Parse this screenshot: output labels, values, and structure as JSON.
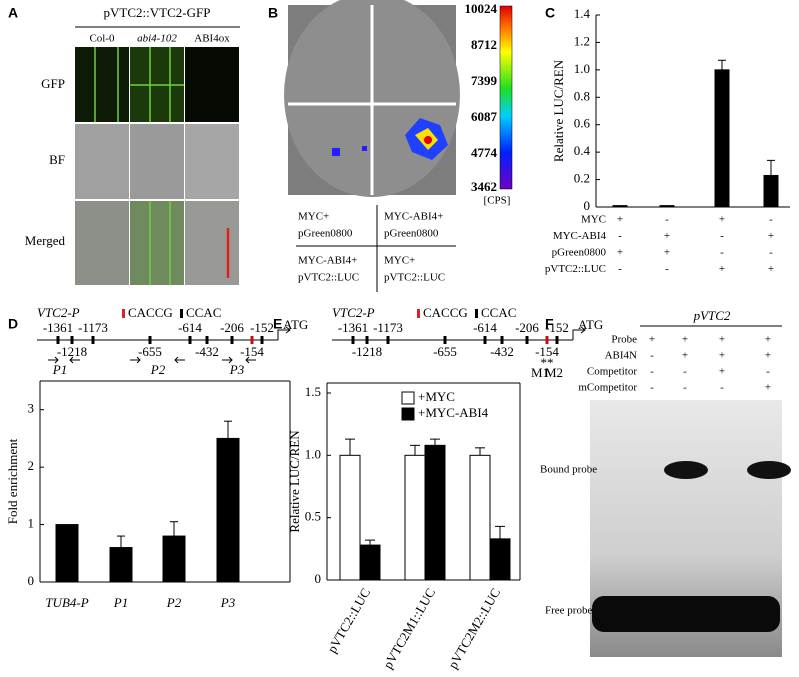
{
  "chart_data": [
    {
      "type": "bar",
      "letter": "C",
      "y_label": "Relative LUC/REN",
      "categories": [
        null,
        null,
        null,
        null
      ],
      "values": [
        0.01,
        0.01,
        1.0,
        0.23
      ],
      "errors": [
        0,
        0,
        0.07,
        0.11
      ],
      "color": "#000000",
      "ylim": [
        0,
        1.4
      ],
      "yticks": [
        0,
        0.2,
        0.4,
        0.6,
        0.8,
        {
          "value": 1,
          "label": "1.0"
        },
        1.2,
        1.4
      ],
      "condition_rows": [
        {
          "name": "MYC",
          "signs": [
            "+",
            "-",
            "+",
            "-"
          ]
        },
        {
          "name": "MYC-ABI4",
          "signs": [
            "-",
            "+",
            "-",
            "+"
          ]
        },
        {
          "name": "pGreen0800",
          "signs": [
            "+",
            "+",
            "-",
            "-"
          ]
        },
        {
          "name": "pVTC2::LUC",
          "signs": [
            "-",
            "-",
            "+",
            "+"
          ]
        }
      ]
    },
    {
      "type": "bar",
      "letter": "D",
      "y_label": "Fold enrichment",
      "categories": [
        "TUB4-P",
        "P1",
        "P2",
        "P3"
      ],
      "values": [
        1.0,
        0.6,
        0.8,
        2.5
      ],
      "errors": [
        0,
        0.2,
        0.25,
        0.3
      ],
      "color": "#000000",
      "ylim": [
        0,
        3.5
      ],
      "yticks": [
        0,
        1,
        2,
        3
      ]
    },
    {
      "type": "grouped_bar",
      "letter": "E",
      "y_label": "Relative LUC/REN",
      "categories": [
        "pVTC2::LUC",
        "pVTC2M1::LUC",
        "pVTC2M2::LUC"
      ],
      "series": [
        {
          "name": "+MYC",
          "color": "#ffffff",
          "values": [
            1.0,
            1.0,
            1.0
          ],
          "errors": [
            0.13,
            0.08,
            0.06
          ]
        },
        {
          "name": "+MYC-ABI4",
          "color": "#000000",
          "values": [
            0.28,
            1.08,
            0.33
          ],
          "errors": [
            0.04,
            0.05,
            0.1
          ]
        }
      ],
      "ylim": [
        0,
        1.58
      ],
      "yticks": [
        0,
        0.5,
        {
          "value": 1,
          "label": "1.0"
        },
        1.5
      ],
      "legend": "upper right"
    }
  ],
  "panels": {
    "A": {
      "letter": "A",
      "title": "pVTC2::VTC2-GFP",
      "columns": [
        "Col-0",
        "abi4-102",
        "ABI4ox"
      ],
      "rows": [
        "GFP",
        "BF",
        "Merged"
      ]
    },
    "B": {
      "letter": "B",
      "colorbar_ticks": [
        10024,
        8712,
        7399,
        6087,
        4774,
        3462
      ],
      "colorbar_unit": "[CPS]",
      "quadrants": [
        [
          "MYC+",
          "pGreen0800"
        ],
        [
          "MYC-ABI4+",
          "pGreen0800"
        ],
        [
          "MYC-ABI4+",
          "pVTC2::LUC"
        ],
        [
          "MYC+",
          "pVTC2::LUC"
        ]
      ]
    },
    "promoter": {
      "name": "VTC2-P",
      "motifs": [
        "CACCG",
        "CCAC"
      ],
      "sites": [
        "-1361",
        "-1173",
        "-1218",
        "-655",
        "-614",
        "-432",
        "-206",
        "-152",
        "-154"
      ],
      "start": "ATG",
      "primers": [
        "P1",
        "P2",
        "P3"
      ],
      "mutants": [
        "M1",
        "M2"
      ],
      "mutant_marks": "**"
    },
    "F": {
      "letter": "F",
      "title": "pVTC2",
      "row_labels": [
        "Probe",
        "ABI4N",
        "Competitor",
        "mCompetitor"
      ],
      "signs": [
        [
          "+",
          "+",
          "+",
          "+"
        ],
        [
          "-",
          "+",
          "+",
          "+"
        ],
        [
          "-",
          "-",
          "+",
          "-"
        ],
        [
          "-",
          "-",
          "-",
          "+"
        ]
      ],
      "band_labels": [
        "Bound probe",
        "Free probe"
      ]
    }
  }
}
